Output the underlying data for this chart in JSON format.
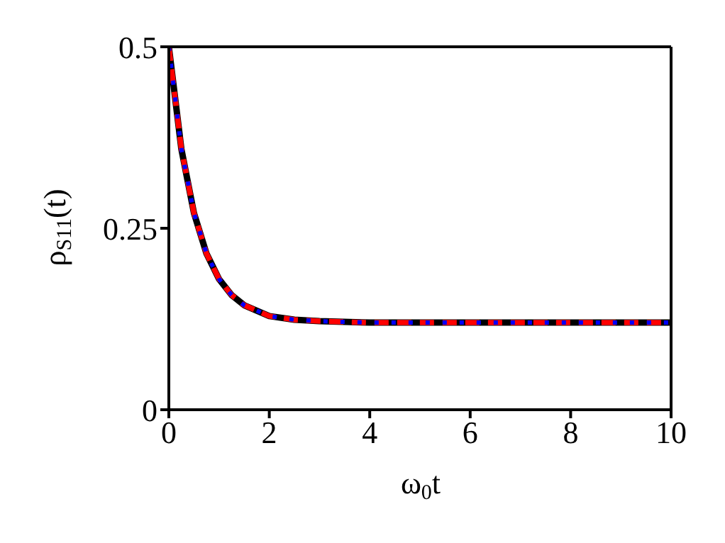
{
  "chart_data": {
    "type": "line",
    "xlabel": "ω$_{0}$t",
    "ylabel": "ρ$_{S11}$(t)",
    "x": [
      0,
      0.25,
      0.5,
      0.75,
      1,
      1.25,
      1.5,
      2,
      2.5,
      3,
      4,
      5,
      6,
      7,
      8,
      9,
      10
    ],
    "series": [
      {
        "color": "#000000",
        "line_style": "solid",
        "values": [
          0.5,
          0.359,
          0.271,
          0.215,
          0.18,
          0.158,
          0.144,
          0.129,
          0.124,
          0.122,
          0.12,
          0.12,
          0.12,
          0.12,
          0.12,
          0.12,
          0.12
        ]
      },
      {
        "color": "#ff0000",
        "line_style": "dashed",
        "values": [
          0.5,
          0.359,
          0.271,
          0.215,
          0.18,
          0.158,
          0.144,
          0.129,
          0.124,
          0.122,
          0.12,
          0.12,
          0.12,
          0.12,
          0.12,
          0.12,
          0.12
        ]
      },
      {
        "color": "#0000ff",
        "line_style": "dotted",
        "values": [
          0.5,
          0.359,
          0.271,
          0.215,
          0.18,
          0.158,
          0.144,
          0.129,
          0.124,
          0.122,
          0.12,
          0.12,
          0.12,
          0.12,
          0.12,
          0.12,
          0.12
        ]
      }
    ],
    "xlim": [
      0,
      10
    ],
    "xticks": [
      0,
      2,
      4,
      6,
      8,
      10
    ],
    "ylim": [
      0,
      0.5
    ],
    "yticks": [
      0,
      0.25,
      0.5
    ],
    "grid": false,
    "marker": "none"
  }
}
